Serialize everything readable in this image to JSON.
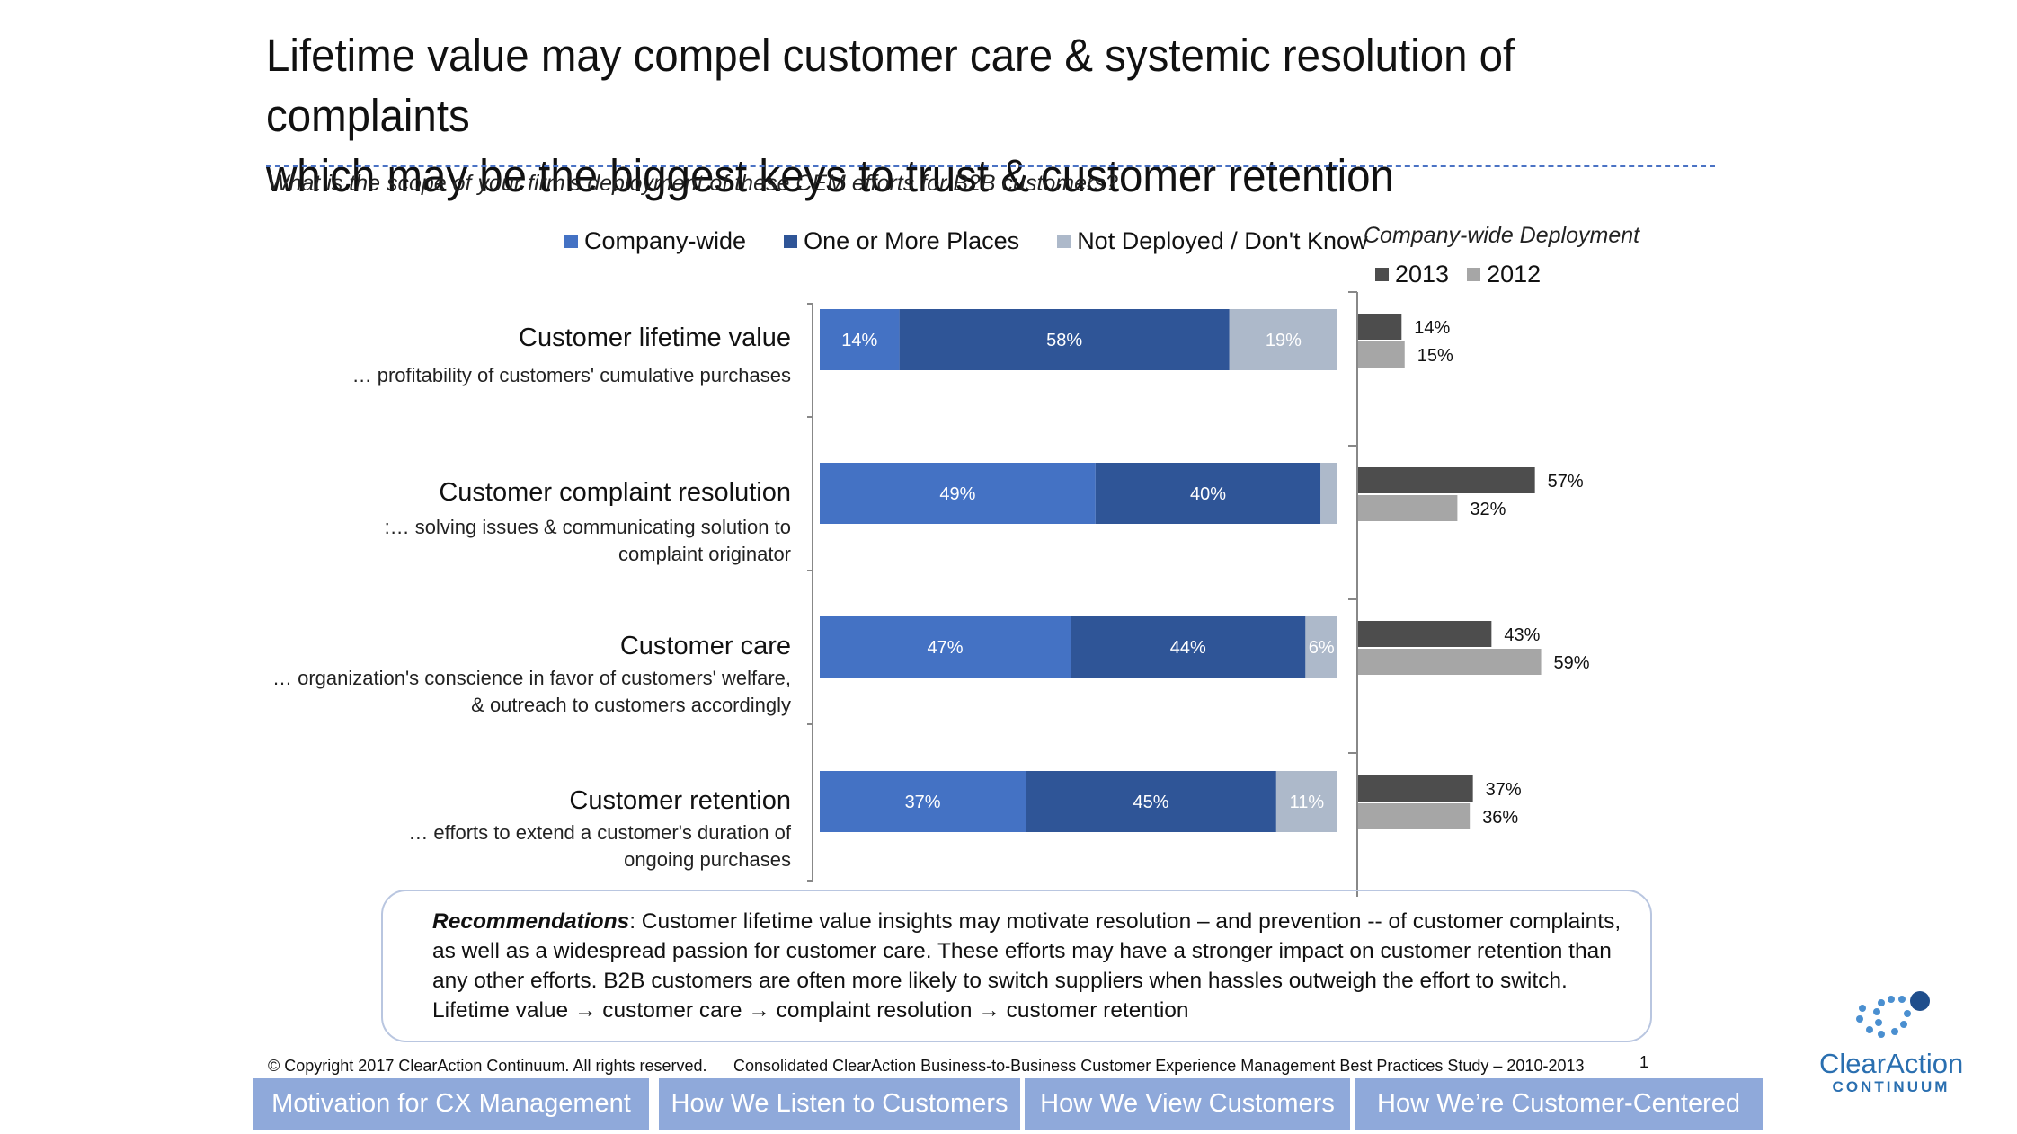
{
  "title_line1": "Lifetime value may compel customer care & systemic resolution of complaints",
  "title_line2": "which may be the biggest keys to trust & customer retention",
  "question": "What is the scope of your firm’s deployment of these CEM efforts for B2B customers?",
  "legend_main": [
    {
      "label": "Company-wide",
      "color": "#4472c4"
    },
    {
      "label": "One or More Places",
      "color": "#2f5597"
    },
    {
      "label": "Not Deployed / Don't Know",
      "color": "#adb9ca"
    }
  ],
  "side_title": "Company-wide Deployment",
  "legend_side": [
    {
      "label": "2013",
      "color": "#4d4d4d"
    },
    {
      "label": "2012",
      "color": "#a6a6a6"
    }
  ],
  "categories": [
    {
      "title": "Customer lifetime value",
      "desc": [
        "… profitability of customers' cumulative purchases"
      ]
    },
    {
      "title": "Customer complaint resolution",
      "desc": [
        ":… solving issues & communicating solution to",
        "complaint originator"
      ]
    },
    {
      "title": "Customer care",
      "desc": [
        "… organization's conscience in favor of  customers' welfare,",
        "& outreach to customers accordingly"
      ]
    },
    {
      "title": "Customer retention",
      "desc": [
        "… efforts to extend a customer's duration of",
        "ongoing purchases"
      ]
    }
  ],
  "chart_data": [
    {
      "type": "bar",
      "orientation": "horizontal",
      "stacked": true,
      "categories": [
        "Customer lifetime value",
        "Customer complaint resolution",
        "Customer care",
        "Customer retention"
      ],
      "series": [
        {
          "name": "Company-wide",
          "values": [
            14,
            49,
            47,
            37
          ],
          "labels": [
            "14%",
            "49%",
            "47%",
            "37%"
          ],
          "color": "#4472c4"
        },
        {
          "name": "One or More Places",
          "values": [
            58,
            40,
            44,
            45
          ],
          "labels": [
            "58%",
            "40%",
            "44%",
            "45%"
          ],
          "color": "#2f5597"
        },
        {
          "name": "Not Deployed / Don't Know",
          "values": [
            19,
            3,
            6,
            11
          ],
          "labels": [
            "19%",
            "",
            "6%",
            "11%"
          ],
          "color": "#adb9ca"
        }
      ]
    },
    {
      "type": "bar",
      "orientation": "horizontal",
      "title": "Company-wide Deployment",
      "categories": [
        "Customer lifetime value",
        "Customer complaint resolution",
        "Customer care",
        "Customer retention"
      ],
      "series": [
        {
          "name": "2013",
          "values": [
            14,
            57,
            43,
            37
          ],
          "labels": [
            "14%",
            "57%",
            "43%",
            "37%"
          ],
          "color": "#4d4d4d"
        },
        {
          "name": "2012",
          "values": [
            15,
            32,
            59,
            36
          ],
          "labels": [
            "15%",
            "32%",
            "59%",
            "36%"
          ],
          "color": "#a6a6a6"
        }
      ]
    }
  ],
  "recommendations": {
    "label": "Recommendations",
    "text": ": Customer lifetime value insights may motivate resolution – and prevention -- of customer complaints, as well as a widespread passion for customer care.  These efforts may have a stronger impact on customer retention than any other efforts.  B2B customers are often more likely to switch suppliers when hassles outweigh the effort to switch.",
    "flow": "Lifetime value → customer care → complaint resolution → customer retention"
  },
  "footer": {
    "copyright": "© Copyright 2017 ClearAction Continuum. All rights reserved.",
    "study": "Consolidated ClearAction Business-to-Business Customer Experience Management Best Practices Study – 2010-2013",
    "page": "1"
  },
  "nav_tabs": [
    "Motivation for CX Management",
    "How We Listen to Customers",
    "How We View Customers",
    "How We’re Customer-Centered"
  ],
  "logo": {
    "name": "ClearAction",
    "sub": "CONTINUUM"
  }
}
